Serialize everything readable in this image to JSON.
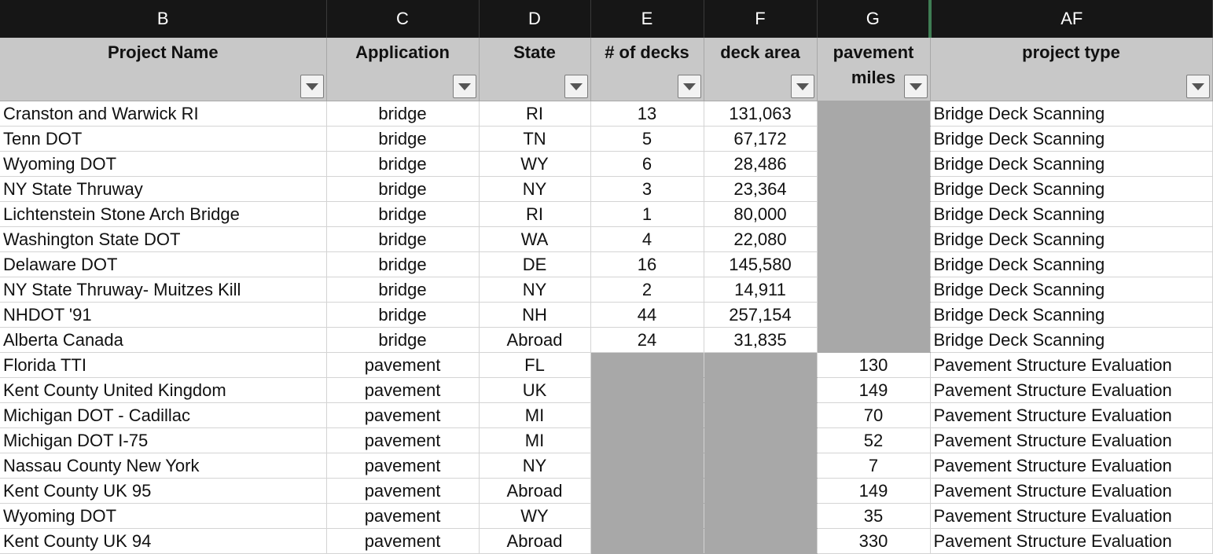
{
  "columns": {
    "letters": [
      "B",
      "C",
      "D",
      "E",
      "F",
      "G",
      "AF"
    ],
    "headers": [
      "Project Name",
      "Application",
      "State",
      "# of decks",
      "deck area",
      "pavement miles",
      "project type"
    ]
  },
  "rows": [
    {
      "name": "Cranston and Warwick RI",
      "application": "bridge",
      "state": "RI",
      "decks": "13",
      "deck_area": "131,063",
      "pavement_miles": "",
      "project_type": "Bridge Deck Scanning"
    },
    {
      "name": "Tenn DOT",
      "application": "bridge",
      "state": "TN",
      "decks": "5",
      "deck_area": "67,172",
      "pavement_miles": "",
      "project_type": "Bridge Deck Scanning"
    },
    {
      "name": "Wyoming DOT",
      "application": "bridge",
      "state": "WY",
      "decks": "6",
      "deck_area": "28,486",
      "pavement_miles": "",
      "project_type": "Bridge Deck Scanning"
    },
    {
      "name": "NY State Thruway",
      "application": "bridge",
      "state": "NY",
      "decks": "3",
      "deck_area": "23,364",
      "pavement_miles": "",
      "project_type": "Bridge Deck Scanning"
    },
    {
      "name": "Lichtenstein Stone Arch Bridge",
      "application": "bridge",
      "state": "RI",
      "decks": "1",
      "deck_area": "80,000",
      "pavement_miles": "",
      "project_type": "Bridge Deck Scanning"
    },
    {
      "name": "Washington State DOT",
      "application": "bridge",
      "state": "WA",
      "decks": "4",
      "deck_area": "22,080",
      "pavement_miles": "",
      "project_type": "Bridge Deck Scanning"
    },
    {
      "name": "Delaware DOT",
      "application": "bridge",
      "state": "DE",
      "decks": "16",
      "deck_area": "145,580",
      "pavement_miles": "",
      "project_type": "Bridge Deck Scanning"
    },
    {
      "name": "NY State Thruway- Muitzes Kill",
      "application": "bridge",
      "state": "NY",
      "decks": "2",
      "deck_area": "14,911",
      "pavement_miles": "",
      "project_type": "Bridge Deck Scanning"
    },
    {
      "name": "NHDOT '91",
      "application": "bridge",
      "state": "NH",
      "decks": "44",
      "deck_area": "257,154",
      "pavement_miles": "",
      "project_type": "Bridge Deck Scanning"
    },
    {
      "name": "Alberta Canada",
      "application": "bridge",
      "state": "Abroad",
      "decks": "24",
      "deck_area": "31,835",
      "pavement_miles": "",
      "project_type": "Bridge Deck Scanning"
    },
    {
      "name": "Florida TTI",
      "application": "pavement",
      "state": "FL",
      "decks": "",
      "deck_area": "",
      "pavement_miles": "130",
      "project_type": "Pavement Structure Evaluation"
    },
    {
      "name": "Kent County United Kingdom",
      "application": "pavement",
      "state": "UK",
      "decks": "",
      "deck_area": "",
      "pavement_miles": "149",
      "project_type": "Pavement Structure Evaluation"
    },
    {
      "name": "Michigan DOT - Cadillac",
      "application": "pavement",
      "state": "MI",
      "decks": "",
      "deck_area": "",
      "pavement_miles": "70",
      "project_type": "Pavement Structure Evaluation"
    },
    {
      "name": "Michigan DOT I-75",
      "application": "pavement",
      "state": "MI",
      "decks": "",
      "deck_area": "",
      "pavement_miles": "52",
      "project_type": "Pavement Structure Evaluation"
    },
    {
      "name": "Nassau County New York",
      "application": "pavement",
      "state": "NY",
      "decks": "",
      "deck_area": "",
      "pavement_miles": "7",
      "project_type": "Pavement Structure Evaluation"
    },
    {
      "name": "Kent County UK 95",
      "application": "pavement",
      "state": "Abroad",
      "decks": "",
      "deck_area": "",
      "pavement_miles": "149",
      "project_type": "Pavement Structure Evaluation"
    },
    {
      "name": "Wyoming DOT",
      "application": "pavement",
      "state": "WY",
      "decks": "",
      "deck_area": "",
      "pavement_miles": "35",
      "project_type": "Pavement Structure Evaluation"
    },
    {
      "name": "Kent County UK 94",
      "application": "pavement",
      "state": "Abroad",
      "decks": "",
      "deck_area": "",
      "pavement_miles": "330",
      "project_type": "Pavement Structure Evaluation"
    }
  ],
  "colors": {
    "letter_bar": "#161616",
    "header_fill": "#c8c8c8",
    "empty_cell_fill": "#a8a8a8",
    "selection_edge": "#3f7d54"
  },
  "icons": {
    "filter": "filter-dropdown-icon"
  }
}
